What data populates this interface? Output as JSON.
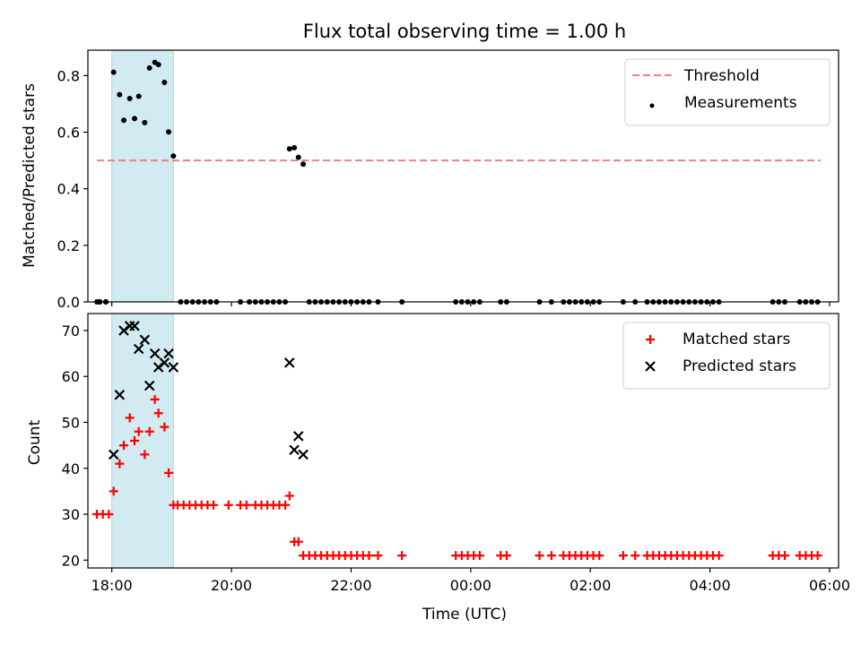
{
  "title": "Flux total observing time = 1.00 h",
  "chart_data": [
    {
      "type": "scatter",
      "panel": "top",
      "xlabel": "",
      "ylabel": "Matched/Predicted stars",
      "xlim": [
        -0.4,
        12.15
      ],
      "ylim": [
        0,
        0.89
      ],
      "yticks": [
        0.0,
        0.2,
        0.4,
        0.6,
        0.8
      ],
      "ytick_labels": [
        "0.0",
        "0.2",
        "0.4",
        "0.6",
        "0.8"
      ],
      "xticks": [
        0,
        2,
        4,
        6,
        8,
        10,
        12
      ],
      "grid": false,
      "legend_position": "top-right",
      "shaded_interval": [
        0.0,
        1.03
      ],
      "shade_color": "#add8e6",
      "threshold": {
        "name": "Threshold",
        "value": 0.5,
        "x_range": [
          -0.25,
          11.85
        ],
        "color": "#f08080"
      },
      "series": [
        {
          "name": "Measurements",
          "color": "#000000",
          "x": [
            -0.2,
            -0.1,
            0.03,
            0.13,
            0.2,
            0.3,
            0.38,
            0.45,
            0.55,
            0.63,
            0.72,
            0.78,
            0.88,
            0.95,
            1.03,
            2.97,
            3.05,
            3.12,
            3.2
          ],
          "y": [
            0,
            0,
            0.812,
            0.733,
            0.642,
            0.719,
            0.648,
            0.727,
            0.634,
            0.827,
            0.847,
            0.839,
            0.776,
            0.601,
            0.516,
            0.541,
            0.545,
            0.511,
            0.487
          ]
        },
        {
          "name": "",
          "color": "#000000",
          "x": [
            -0.25,
            -0.2,
            -0.1,
            1.15,
            1.25,
            1.35,
            1.45,
            1.55,
            1.65,
            1.75,
            2.15,
            2.3,
            2.4,
            2.5,
            2.6,
            2.7,
            2.8,
            2.9,
            3.3,
            3.4,
            3.5,
            3.6,
            3.7,
            3.8,
            3.9,
            4.0,
            4.1,
            4.2,
            4.3,
            4.45,
            4.85,
            5.75,
            5.85,
            5.95,
            6.05,
            6.15,
            6.5,
            6.6,
            7.15,
            7.35,
            7.55,
            7.65,
            7.75,
            7.85,
            7.95,
            8.05,
            8.15,
            8.55,
            8.75,
            8.95,
            9.05,
            9.15,
            9.25,
            9.35,
            9.45,
            9.55,
            9.65,
            9.75,
            9.85,
            9.95,
            10.05,
            10.15,
            11.05,
            11.15,
            11.25,
            11.5,
            11.6,
            11.7,
            11.8
          ],
          "y": [
            0,
            0,
            0,
            0,
            0,
            0,
            0,
            0,
            0,
            0,
            0,
            0,
            0,
            0,
            0,
            0,
            0,
            0,
            0,
            0,
            0,
            0,
            0,
            0,
            0,
            0,
            0,
            0,
            0,
            0,
            0,
            0,
            0,
            0,
            0,
            0,
            0,
            0,
            0,
            0,
            0,
            0,
            0,
            0,
            0,
            0,
            0,
            0,
            0,
            0,
            0,
            0,
            0,
            0,
            0,
            0,
            0,
            0,
            0,
            0,
            0,
            0,
            0,
            0,
            0,
            0,
            0,
            0,
            0
          ]
        }
      ]
    },
    {
      "type": "scatter",
      "panel": "bottom",
      "xlabel": "Time (UTC)",
      "ylabel": "Count",
      "xlim": [
        -0.4,
        12.15
      ],
      "ylim": [
        18.3,
        73.7
      ],
      "yticks": [
        20,
        30,
        40,
        50,
        60,
        70
      ],
      "ytick_labels": [
        "20",
        "30",
        "40",
        "50",
        "60",
        "70"
      ],
      "xticks": [
        0,
        2,
        4,
        6,
        8,
        10,
        12
      ],
      "xtick_labels": [
        "18:00",
        "20:00",
        "22:00",
        "00:00",
        "02:00",
        "04:00",
        "06:00"
      ],
      "grid": false,
      "legend_position": "top-right",
      "shaded_interval": [
        0.0,
        1.03
      ],
      "shade_color": "#add8e6",
      "series": [
        {
          "name": "Matched stars",
          "color": "#ff0000",
          "marker": "+",
          "x": [
            -0.25,
            -0.15,
            -0.05,
            0.03,
            0.13,
            0.2,
            0.3,
            0.38,
            0.45,
            0.55,
            0.63,
            0.72,
            0.78,
            0.88,
            0.95,
            1.03,
            1.1,
            1.2,
            1.3,
            1.4,
            1.5,
            1.6,
            1.7,
            1.95,
            2.15,
            2.25,
            2.4,
            2.5,
            2.6,
            2.7,
            2.8,
            2.9,
            2.97,
            3.05,
            3.12,
            3.2,
            3.3,
            3.4,
            3.5,
            3.6,
            3.7,
            3.8,
            3.9,
            4.0,
            4.1,
            4.2,
            4.3,
            4.45,
            4.85,
            5.75,
            5.85,
            5.95,
            6.05,
            6.15,
            6.5,
            6.6,
            7.15,
            7.35,
            7.55,
            7.65,
            7.75,
            7.85,
            7.95,
            8.05,
            8.15,
            8.55,
            8.75,
            8.95,
            9.05,
            9.15,
            9.25,
            9.35,
            9.45,
            9.55,
            9.65,
            9.75,
            9.85,
            9.95,
            10.05,
            10.15,
            11.05,
            11.15,
            11.25,
            11.5,
            11.6,
            11.7,
            11.8
          ],
          "y": [
            30,
            30,
            30,
            35,
            41,
            45,
            51,
            46,
            48,
            43,
            48,
            55,
            52,
            49,
            39,
            32,
            32,
            32,
            32,
            32,
            32,
            32,
            32,
            32,
            32,
            32,
            32,
            32,
            32,
            32,
            32,
            32,
            34,
            24,
            24,
            21,
            21,
            21,
            21,
            21,
            21,
            21,
            21,
            21,
            21,
            21,
            21,
            21,
            21,
            21,
            21,
            21,
            21,
            21,
            21,
            21,
            21,
            21,
            21,
            21,
            21,
            21,
            21,
            21,
            21,
            21,
            21,
            21,
            21,
            21,
            21,
            21,
            21,
            21,
            21,
            21,
            21,
            21,
            21,
            21,
            21,
            21,
            21,
            21,
            21,
            21,
            21
          ]
        },
        {
          "name": "Predicted stars",
          "color": "#000000",
          "marker": "x",
          "x": [
            0.03,
            0.13,
            0.2,
            0.3,
            0.38,
            0.45,
            0.55,
            0.63,
            0.72,
            0.78,
            0.88,
            0.95,
            1.03,
            2.97,
            3.05,
            3.12,
            3.2
          ],
          "y": [
            43,
            56,
            70,
            71,
            71,
            66,
            68,
            58,
            65,
            62,
            63,
            65,
            62,
            63,
            44,
            47,
            43
          ]
        }
      ]
    }
  ]
}
